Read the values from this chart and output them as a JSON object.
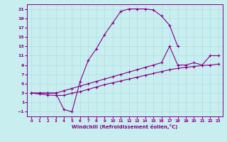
{
  "xlabel": "Windchill (Refroidissement éolien,°C)",
  "bg_color": "#c8eef0",
  "grid_color": "#b0dde0",
  "line_color": "#880088",
  "xlim": [
    -0.5,
    23.5
  ],
  "ylim": [
    -2,
    22
  ],
  "xticks": [
    0,
    1,
    2,
    3,
    4,
    5,
    6,
    7,
    8,
    9,
    10,
    11,
    12,
    13,
    14,
    15,
    16,
    17,
    18,
    19,
    20,
    21,
    22,
    23
  ],
  "yticks": [
    -1,
    1,
    3,
    5,
    7,
    9,
    11,
    13,
    15,
    17,
    19,
    21
  ],
  "series": [
    {
      "x": [
        0,
        1,
        2,
        3,
        4,
        5,
        6,
        7,
        8,
        9,
        10,
        11,
        12,
        13,
        14,
        15,
        16,
        17,
        18,
        19,
        20,
        21,
        22,
        23
      ],
      "y": [
        3,
        3,
        3,
        3,
        -0.5,
        -1.0,
        5.5,
        10.0,
        12.5,
        15.5,
        18.0,
        20.5,
        21.0,
        21.0,
        21.0,
        20.8,
        19.5,
        17.5,
        13.0,
        null,
        null,
        null,
        null,
        null
      ]
    },
    {
      "x": [
        0,
        1,
        2,
        3,
        4,
        5,
        6,
        7,
        8,
        9,
        10,
        11,
        12,
        13,
        14,
        15,
        16,
        17,
        18,
        19,
        20,
        21,
        22,
        23
      ],
      "y": [
        3,
        3,
        3,
        3,
        3.5,
        4.0,
        4.5,
        5.0,
        5.5,
        6.0,
        6.5,
        7.0,
        7.5,
        8.0,
        8.5,
        9.0,
        9.5,
        13.0,
        9.0,
        9.0,
        9.5,
        9.0,
        11.0,
        11.0
      ]
    },
    {
      "x": [
        0,
        1,
        2,
        3,
        4,
        5,
        6,
        7,
        8,
        9,
        10,
        11,
        12,
        13,
        14,
        15,
        16,
        17,
        18,
        19,
        20,
        21,
        22,
        23
      ],
      "y": [
        3,
        2.8,
        2.6,
        2.5,
        2.5,
        3.0,
        3.3,
        3.8,
        4.3,
        4.8,
        5.2,
        5.6,
        6.0,
        6.4,
        6.8,
        7.2,
        7.6,
        8.0,
        8.3,
        8.5,
        8.7,
        8.9,
        9.0,
        9.2
      ]
    }
  ]
}
